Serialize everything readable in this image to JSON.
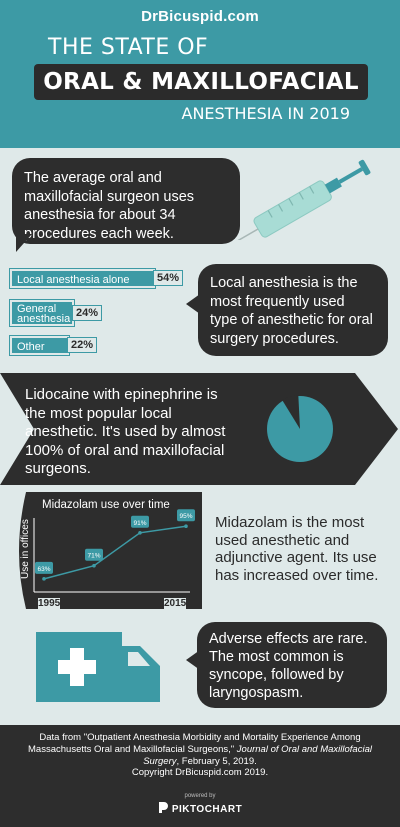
{
  "header": {
    "brand": "DrBicuspid.com",
    "line1": "THE STATE OF",
    "line2": "ORAL & MAXILLOFACIAL",
    "line3": "ANESTHESIA IN 2019"
  },
  "section1": {
    "text": "The average oral and maxillofacial surgeon uses anesthesia for about 34 procedures each week.",
    "icon": "syringe-icon"
  },
  "chart_data": {
    "type": "bar",
    "categories": [
      "Local anesthesia alone",
      "General anesthesia",
      "Other"
    ],
    "values": [
      54,
      24,
      22
    ],
    "labels": [
      "54%",
      "24%",
      "22%"
    ]
  },
  "section2": {
    "text": "Local anesthesia is the most frequently used type of anesthetic for oral surgery procedures."
  },
  "section3": {
    "text": "Lidocaine with epinephrine is the most popular local anesthetic. It's used by almost 100% of oral and maxillofacial surgeons.",
    "pie_percent": 92
  },
  "section4": {
    "chart_title": "Midazolam use over time",
    "ylabel": "Use in offices",
    "x_start": "1995",
    "x_end": "2015",
    "points": [
      {
        "label": "63%",
        "value": 63
      },
      {
        "label": "71%",
        "value": 71
      },
      {
        "label": "91%",
        "value": 91
      },
      {
        "label": "95%",
        "value": 95
      }
    ],
    "text": "Midazolam is the most used anesthetic and adjunctive agent. Its use has increased over time."
  },
  "section5": {
    "text": "Adverse effects are rare. The most common is syncope, followed by laryngospasm.",
    "icon": "ambulance-icon"
  },
  "footer": {
    "source_pre": "Data from \"Outpatient Anesthesia Morbidity and Mortality Experience Among Massachusetts Oral and Maxillofacial Surgeons,\" ",
    "source_journal": "Journal of Oral and Maxillofacial Surgery",
    "source_post": ", February 5, 2019.",
    "copyright": "Copyright DrBicuspid.com 2019.",
    "powered_by": "powered by",
    "piktochart": "PIKTOCHART"
  },
  "colors": {
    "teal": "#3d9aa5",
    "dark": "#2d2d2d",
    "background": "#dfe9e9"
  }
}
